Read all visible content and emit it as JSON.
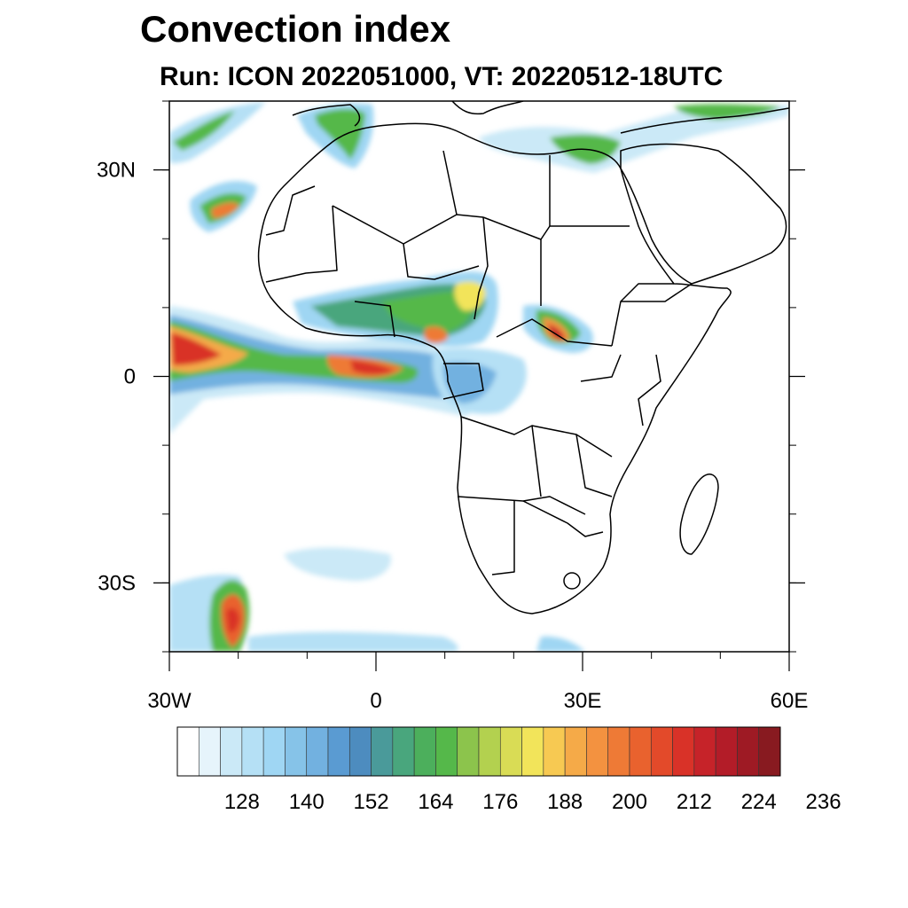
{
  "title": "Convection index",
  "subtitle": "Run: ICON 2022051000,  VT: 20220512-18UTC",
  "map": {
    "lon_range": [
      -30,
      60
    ],
    "lat_range": [
      -40,
      40
    ],
    "lat_ticks": [
      {
        "value": 30,
        "label": "30N"
      },
      {
        "value": 0,
        "label": "0"
      },
      {
        "value": -30,
        "label": "30S"
      }
    ],
    "lon_ticks": [
      {
        "value": -30,
        "label": "30W"
      },
      {
        "value": 0,
        "label": "0"
      },
      {
        "value": 30,
        "label": "30E"
      },
      {
        "value": 60,
        "label": "60E"
      }
    ]
  },
  "colorbar": {
    "labels": [
      "128",
      "140",
      "152",
      "164",
      "176",
      "188",
      "200",
      "212",
      "224",
      "236"
    ],
    "colors": [
      "#ffffff",
      "#e6f4fb",
      "#cbe9f7",
      "#b5e0f5",
      "#9fd6f3",
      "#86c3e8",
      "#72b1e0",
      "#5a9bd2",
      "#4d8cbf",
      "#4a9a9a",
      "#49a67d",
      "#4caf5c",
      "#55b84a",
      "#8cc44c",
      "#b3d14f",
      "#d9dc55",
      "#f2e45a",
      "#f7c952",
      "#f5aa48",
      "#f39240",
      "#ee7a36",
      "#e9622e",
      "#e34a2a",
      "#d93228",
      "#c62329",
      "#b31c28",
      "#9e1a24",
      "#881a20"
    ]
  }
}
